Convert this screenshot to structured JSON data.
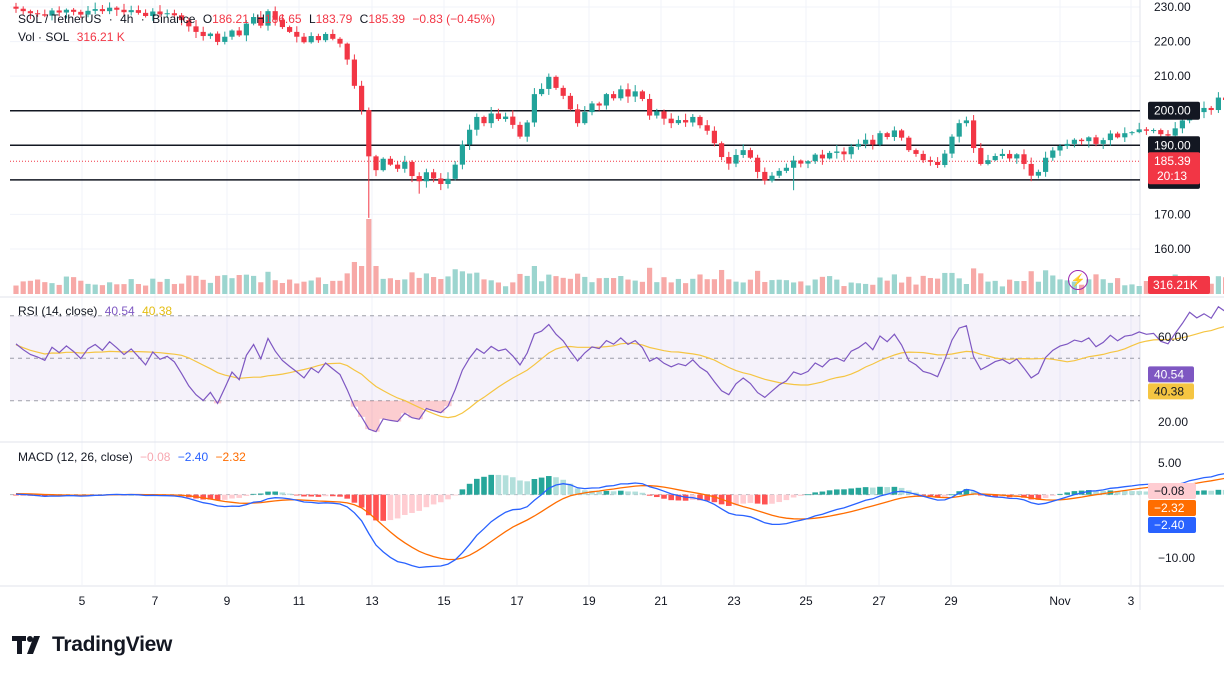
{
  "header": {
    "pair": "SOL / TetherUS",
    "interval": "4h",
    "exchange": "Binance",
    "open_label": "O",
    "open_value": "186.21",
    "high_label": "H",
    "high_value": "186.65",
    "low_label": "L",
    "low_value": "183.79",
    "close_label": "C",
    "close_value": "185.39",
    "change": "−0.83 (−0.45%)",
    "volume_label": "Vol · SOL",
    "volume_value": "316.21 K"
  },
  "rsi_legend": {
    "label": "RSI (14, close)",
    "rsi_value": "40.54",
    "ma_value": "40.38"
  },
  "macd_legend": {
    "label": "MACD (12, 26, close)",
    "hist_value": "−0.08",
    "macd_value": "−2.40",
    "signal_value": "−2.32"
  },
  "logo_text": "TradingView",
  "colors": {
    "up": "#22a39a",
    "down": "#f23645",
    "rsi": "#7e57c2",
    "rsi_ma": "#f5c542",
    "macd": "#2962ff",
    "signal": "#ff6d00"
  },
  "chart_data": [
    {
      "type": "candlestick",
      "title": "SOL / TetherUS · 4h · Binance",
      "x_tick_labels": [
        "5",
        "7",
        "9",
        "11",
        "13",
        "15",
        "17",
        "19",
        "21",
        "23",
        "25",
        "27",
        "29",
        "Nov",
        "3"
      ],
      "y_tick_labels": [
        "230.00",
        "220.00",
        "210.00",
        "190.00",
        "170.00",
        "160.00"
      ],
      "ylim": [
        155,
        232
      ],
      "horizontal_levels": [
        {
          "value": 200,
          "label": "200.00"
        },
        {
          "value": 190,
          "label": "190.00"
        },
        {
          "value": 180,
          "label": "180.00"
        }
      ],
      "last_price": {
        "value": 185.39,
        "label": "185.39",
        "countdown": "20:13"
      },
      "volume_last_label": "316.21K",
      "close_series": [
        229.5,
        228.8,
        228.2,
        227.9,
        227.5,
        229,
        228.4,
        229.2,
        228.6,
        227.8,
        228.9,
        229.4,
        228.8,
        229.8,
        229.2,
        228.5,
        229.1,
        228.3,
        227.4,
        228.7,
        227.9,
        228.2,
        227.6,
        226.2,
        224.4,
        222.8,
        221.6,
        222.3,
        219.9,
        221.4,
        223.2,
        221.8,
        225.2,
        227.1,
        224.6,
        228.8,
        226.3,
        224.2,
        222.8,
        221.4,
        219.8,
        221.6,
        220.4,
        222.2,
        220.8,
        219.4,
        214.8,
        207.2,
        200.2,
        186.8,
        182.8,
        186.1,
        184.4,
        183.2,
        185.2,
        181.1,
        179.6,
        182.2,
        180.4,
        178.8,
        180.3,
        184.4,
        190.2,
        194.5,
        198.2,
        196.4,
        199.2,
        197.6,
        198.3,
        195.9,
        192.5,
        196.6,
        204.8,
        206.3,
        209.8,
        206.6,
        204.3,
        200.4,
        196.4,
        199.6,
        202.1,
        201.5,
        204.8,
        203.6,
        206.2,
        204.1,
        205.6,
        203.4,
        198.6,
        199.8,
        197.7,
        196.4,
        197.3,
        196.6,
        198.2,
        195.8,
        194.2,
        190.6,
        186.6,
        184.7,
        187.2,
        188.6,
        186.4,
        182.3,
        179.8,
        181.2,
        182.6,
        183.5,
        185.6,
        184.7,
        185.4,
        187.3,
        186.2,
        187.8,
        188.2,
        187.4,
        189.6,
        190.4,
        191.6,
        190.2,
        193.5,
        192.4,
        194.3,
        192.2,
        188.6,
        187.5,
        185.7,
        185.2,
        184.3,
        187.6,
        192.5,
        196.4,
        197.2,
        189.2,
        184.6,
        185.7,
        186.9,
        187.5,
        186.2,
        187.4,
        184.6,
        181.2,
        182.3,
        186.4,
        188.5,
        189.8,
        190.4,
        191.6,
        191.2,
        192.3,
        190.4,
        191.5,
        193.4,
        192.3,
        193.5,
        193.8,
        194.6,
        194.2,
        194.4,
        193.2,
        192.8,
        194.9,
        197.2,
        200.4,
        199.6,
        200.8,
        200.2,
        203.8,
        203.1,
        202.6,
        201.4,
        200.3,
        200.8,
        201.4,
        202.2,
        203.6,
        202.5,
        200.2,
        196.4,
        195.1,
        194.4,
        196.2,
        198.3,
        194.6,
        191.7,
        195.4,
        197.3,
        196.4,
        193.5,
        187.4,
        184.2,
        181.8,
        185.5,
        186.3,
        186.2,
        187.8,
        189.1,
        188.5,
        188.3,
        186.2,
        186.6,
        186.4,
        185.39
      ]
    },
    {
      "type": "line",
      "title": "RSI (14, close)",
      "y_tick_labels": [
        "60.00",
        "20.00"
      ],
      "ylim": [
        15,
        80
      ],
      "bands": [
        70,
        50,
        30
      ],
      "series": [
        {
          "name": "RSI",
          "last": 40.54,
          "last_label": "40.54"
        },
        {
          "name": "RSI-based MA",
          "last": 40.38,
          "last_label": "40.38"
        }
      ]
    },
    {
      "type": "bar+line",
      "title": "MACD (12, 26, close)",
      "y_tick_labels": [
        "5.00",
        "−10.00"
      ],
      "ylim": [
        -13,
        7
      ],
      "series": [
        {
          "name": "Histogram",
          "last": -0.08,
          "last_label": "−0.08"
        },
        {
          "name": "MACD",
          "last": -2.4,
          "last_label": "−2.40"
        },
        {
          "name": "Signal",
          "last": -2.32,
          "last_label": "−2.32"
        }
      ]
    }
  ]
}
